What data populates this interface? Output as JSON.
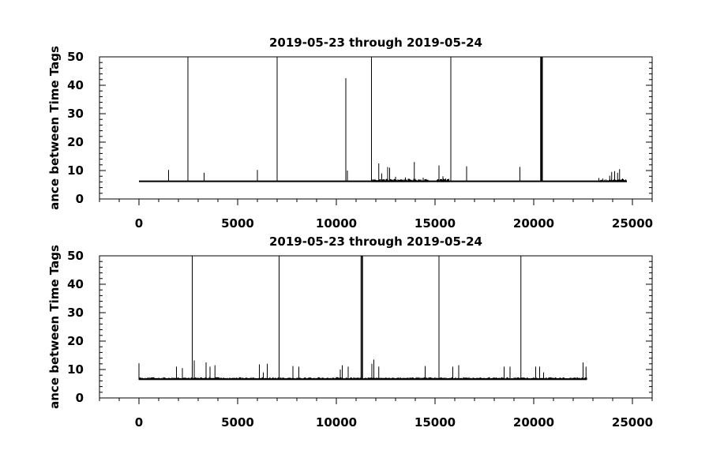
{
  "chart_data": [
    {
      "type": "line",
      "title": "2019-05-23 through 2019-05-24",
      "xlabel": "",
      "ylabel": "ance between Time Tags",
      "xlim": [
        -2000,
        26000
      ],
      "ylim": [
        0,
        50
      ],
      "xticks": [
        0,
        5000,
        10000,
        15000,
        20000,
        25000
      ],
      "yticks": [
        0,
        10,
        20,
        30,
        40,
        50
      ],
      "x_minor_step": 1000,
      "y_minor_step": 2,
      "x_range": [
        0,
        24700
      ],
      "baseline": 6.2,
      "spikes": [
        {
          "x": 1500,
          "y": 10.2
        },
        {
          "x": 2480,
          "y": 50
        },
        {
          "x": 3300,
          "y": 9.2
        },
        {
          "x": 6000,
          "y": 10.2
        },
        {
          "x": 7000,
          "y": 50
        },
        {
          "x": 10480,
          "y": 42.5
        },
        {
          "x": 10560,
          "y": 10.0
        },
        {
          "x": 11780,
          "y": 50
        },
        {
          "x": 12150,
          "y": 12.5
        },
        {
          "x": 12300,
          "y": 9.0
        },
        {
          "x": 12600,
          "y": 11.2
        },
        {
          "x": 12700,
          "y": 11.0
        },
        {
          "x": 13000,
          "y": 7.8
        },
        {
          "x": 13500,
          "y": 7.6
        },
        {
          "x": 13950,
          "y": 13.0
        },
        {
          "x": 14400,
          "y": 7.5
        },
        {
          "x": 15200,
          "y": 11.8
        },
        {
          "x": 15400,
          "y": 8.0
        },
        {
          "x": 15800,
          "y": 50
        },
        {
          "x": 16600,
          "y": 11.5
        },
        {
          "x": 19300,
          "y": 11.3
        },
        {
          "x": 20350,
          "y": 50
        },
        {
          "x": 20380,
          "y": 50
        },
        {
          "x": 20410,
          "y": 50
        },
        {
          "x": 20440,
          "y": 50
        },
        {
          "x": 23300,
          "y": 7.4
        },
        {
          "x": 23500,
          "y": 7.2
        },
        {
          "x": 23850,
          "y": 8.2
        },
        {
          "x": 23950,
          "y": 9.5
        },
        {
          "x": 24100,
          "y": 9.8
        },
        {
          "x": 24250,
          "y": 9.2
        },
        {
          "x": 24350,
          "y": 10.5
        },
        {
          "x": 24500,
          "y": 7.2
        }
      ],
      "noisy_bands": [
        {
          "from": 11800,
          "to": 14700,
          "amplitude": 0.9
        },
        {
          "from": 15100,
          "to": 15700,
          "amplitude": 1.0
        },
        {
          "from": 23300,
          "to": 24700,
          "amplitude": 0.8
        }
      ]
    },
    {
      "type": "line",
      "title": "2019-05-23 through 2019-05-24",
      "xlabel": "",
      "ylabel": "ance between Time Tags",
      "xlim": [
        -2000,
        26000
      ],
      "ylim": [
        0,
        50
      ],
      "xticks": [
        0,
        5000,
        10000,
        15000,
        20000,
        25000
      ],
      "yticks": [
        0,
        10,
        20,
        30,
        40,
        50
      ],
      "x_minor_step": 1000,
      "y_minor_step": 2,
      "x_range": [
        0,
        22700
      ],
      "baseline": 6.6,
      "spikes": [
        {
          "x": 0,
          "y": 12.2
        },
        {
          "x": 1900,
          "y": 11.0
        },
        {
          "x": 2200,
          "y": 10.5
        },
        {
          "x": 2700,
          "y": 50
        },
        {
          "x": 2800,
          "y": 13.2
        },
        {
          "x": 3400,
          "y": 12.5
        },
        {
          "x": 3600,
          "y": 11.0
        },
        {
          "x": 3850,
          "y": 11.5
        },
        {
          "x": 6100,
          "y": 11.8
        },
        {
          "x": 6300,
          "y": 9.0
        },
        {
          "x": 6500,
          "y": 12.0
        },
        {
          "x": 7100,
          "y": 50
        },
        {
          "x": 7800,
          "y": 11.2
        },
        {
          "x": 8100,
          "y": 11.0
        },
        {
          "x": 10200,
          "y": 10.0
        },
        {
          "x": 10300,
          "y": 11.5
        },
        {
          "x": 10600,
          "y": 11.0
        },
        {
          "x": 11250,
          "y": 50
        },
        {
          "x": 11290,
          "y": 50
        },
        {
          "x": 11330,
          "y": 50
        },
        {
          "x": 11800,
          "y": 12.0
        },
        {
          "x": 11900,
          "y": 13.5
        },
        {
          "x": 12150,
          "y": 11.0
        },
        {
          "x": 14500,
          "y": 11.2
        },
        {
          "x": 15200,
          "y": 50
        },
        {
          "x": 15900,
          "y": 11.0
        },
        {
          "x": 16200,
          "y": 11.5
        },
        {
          "x": 18500,
          "y": 11.0
        },
        {
          "x": 18800,
          "y": 11.0
        },
        {
          "x": 19350,
          "y": 50
        },
        {
          "x": 20100,
          "y": 11.0
        },
        {
          "x": 20300,
          "y": 11.0
        },
        {
          "x": 20500,
          "y": 9.0
        },
        {
          "x": 22500,
          "y": 12.5
        },
        {
          "x": 22650,
          "y": 11.0
        }
      ],
      "noisy_bands": [
        {
          "from": 0,
          "to": 22700,
          "amplitude": 0.7
        }
      ]
    }
  ]
}
